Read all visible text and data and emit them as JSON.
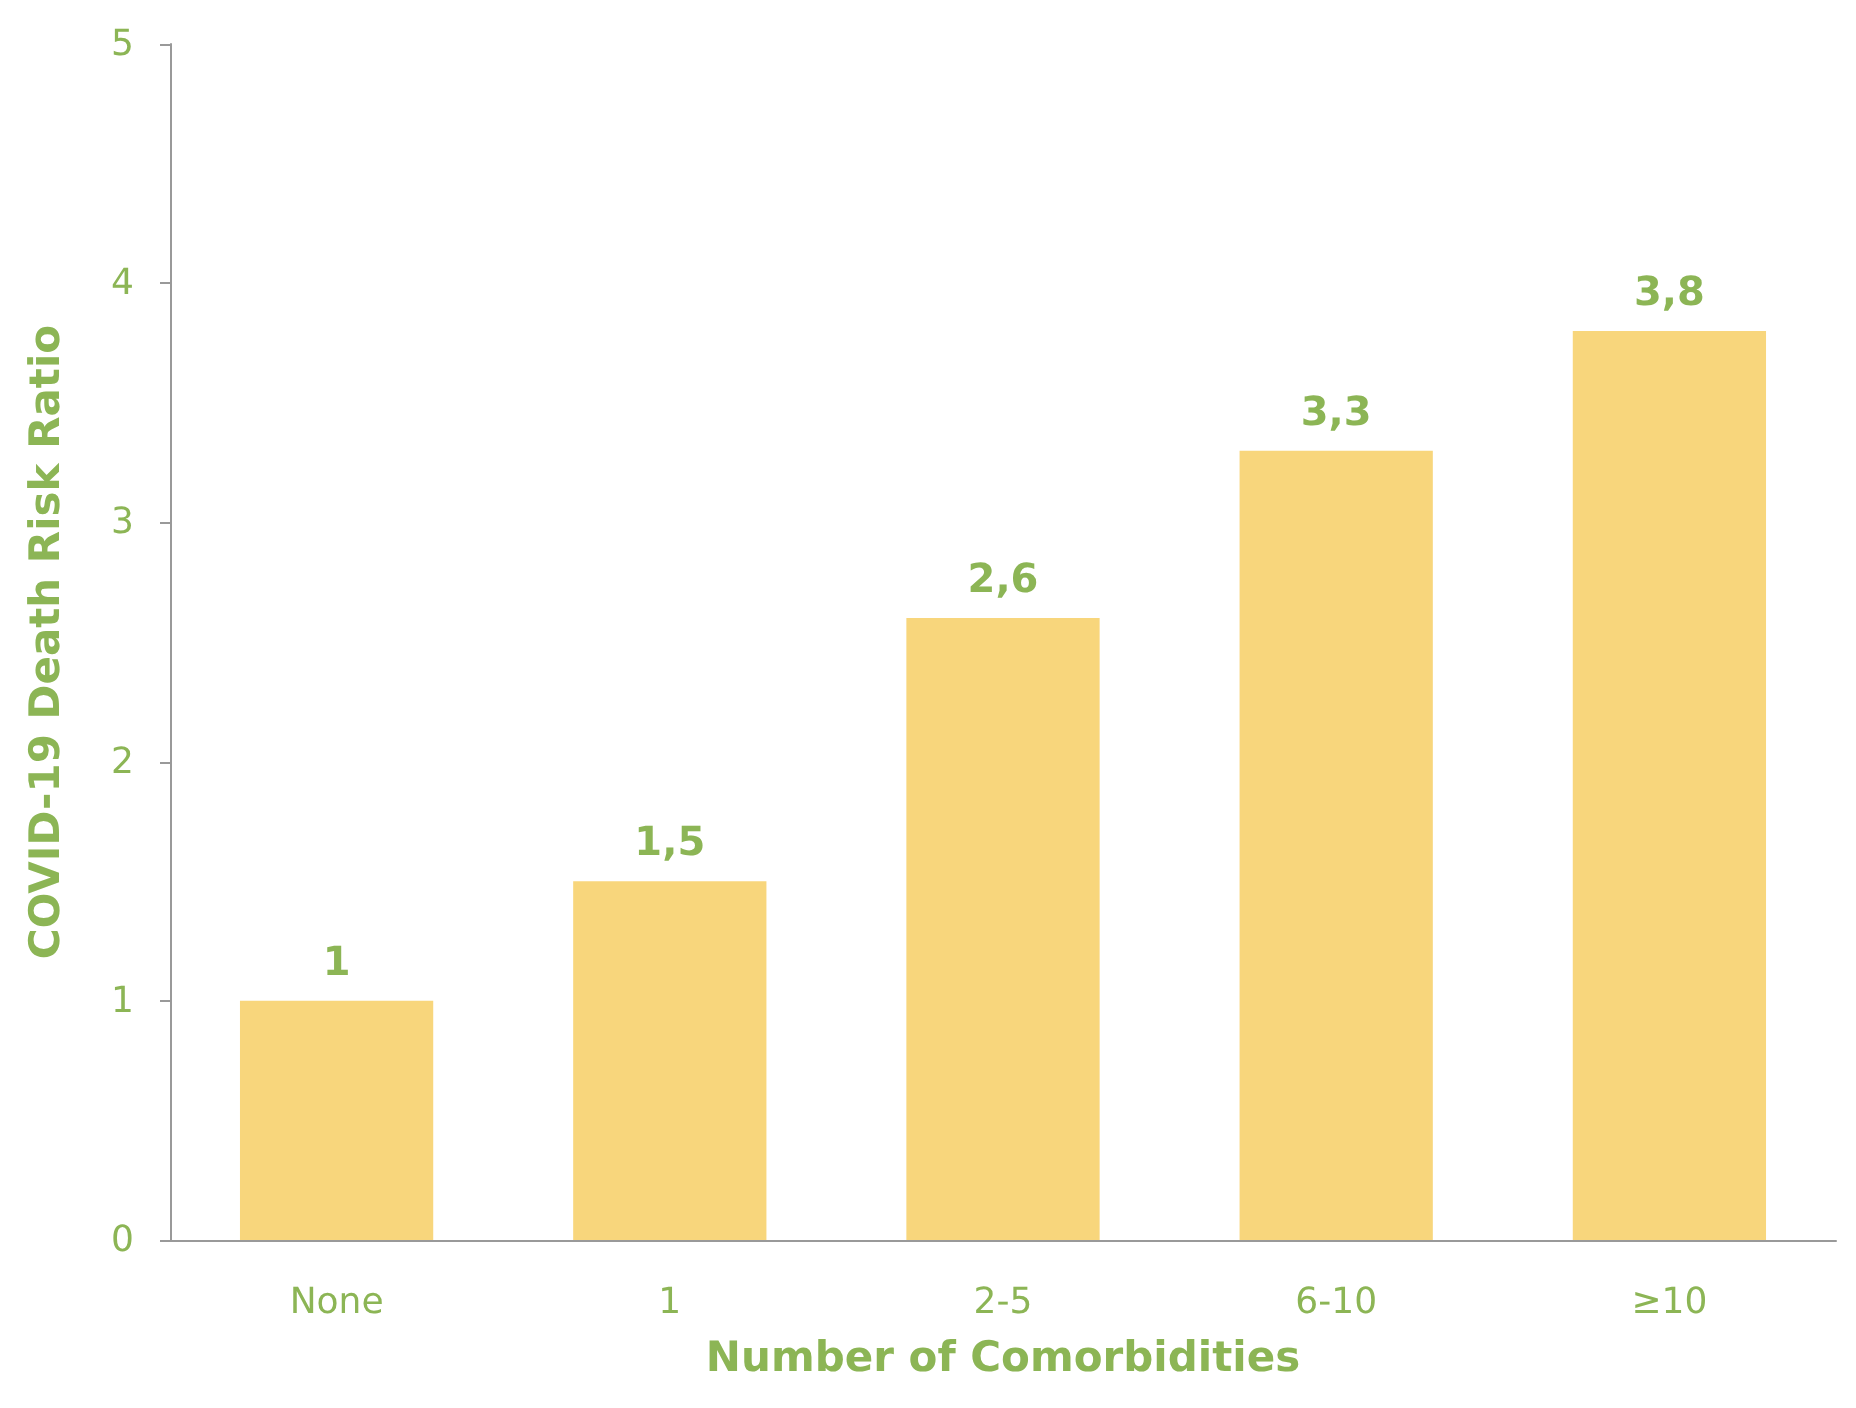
{
  "chart_data": {
    "type": "bar",
    "xlabel": "Number of Comorbidities",
    "ylabel": "COVID-19 Death Risk Ratio",
    "categories": [
      "None",
      "1",
      "2-5",
      "6-10",
      "≥10"
    ],
    "values": [
      1,
      1.5,
      2.6,
      3.3,
      3.8
    ],
    "value_labels": [
      "1",
      "1,5",
      "2,6",
      "3,3",
      "3,8"
    ],
    "color": "#f8d67c",
    "ylim": [
      0,
      5
    ],
    "yticks": [
      0,
      1,
      2,
      3,
      4,
      5
    ],
    "grid": false
  }
}
